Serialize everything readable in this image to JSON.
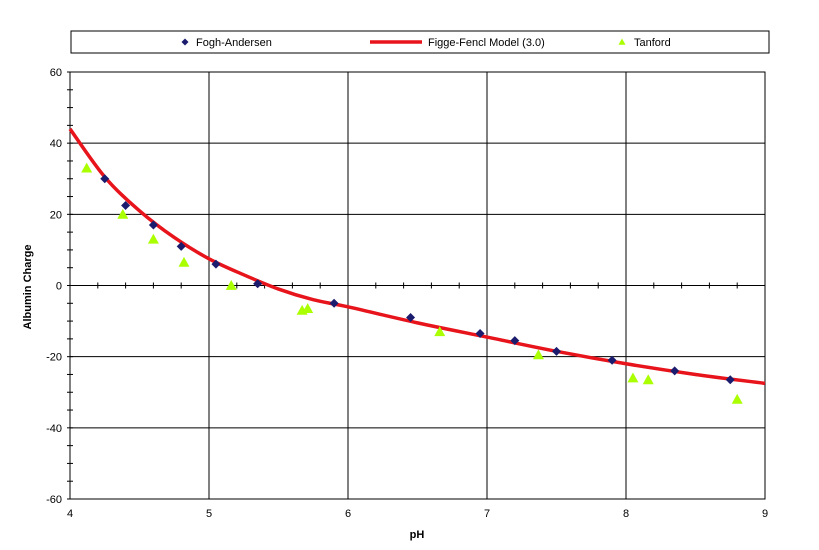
{
  "chart_data": {
    "type": "scatter",
    "title": "",
    "xlabel": "pH",
    "ylabel": "Albumin Charge",
    "xlim": [
      4,
      9
    ],
    "ylim": [
      -60,
      60
    ],
    "x_ticks": [
      4,
      5,
      6,
      7,
      8,
      9
    ],
    "y_ticks": [
      -60,
      -40,
      -20,
      0,
      20,
      40,
      60
    ],
    "grid": true,
    "legend_position": "top",
    "series": [
      {
        "name": "Fogh-Andersen",
        "type": "scatter",
        "marker": "diamond",
        "color": "#1c1c6e",
        "x": [
          4.25,
          4.4,
          4.6,
          4.8,
          5.05,
          5.35,
          5.9,
          6.45,
          6.95,
          7.2,
          7.5,
          7.9,
          8.35,
          8.75
        ],
        "y": [
          30,
          22.5,
          17,
          11,
          6,
          0.5,
          -5,
          -9,
          -13.5,
          -15.5,
          -18.5,
          -21,
          -24,
          -26.5
        ]
      },
      {
        "name": "Figge-Fencl Model (3.0)",
        "type": "line",
        "color": "#e8141c",
        "x": [
          4.0,
          4.25,
          4.5,
          4.75,
          5.0,
          5.25,
          5.5,
          5.75,
          6.0,
          6.5,
          7.0,
          7.5,
          8.0,
          8.5,
          9.0
        ],
        "y": [
          44,
          30.5,
          21,
          13.5,
          7.5,
          3,
          -1,
          -4,
          -6,
          -10.5,
          -14.5,
          -18.5,
          -22,
          -25,
          -27.5
        ]
      },
      {
        "name": "Tanford",
        "type": "scatter",
        "marker": "triangle",
        "color": "#aaff00",
        "x": [
          4.12,
          4.38,
          4.6,
          4.82,
          5.16,
          5.67,
          5.71,
          6.66,
          7.37,
          8.05,
          8.16,
          8.8
        ],
        "y": [
          33,
          20,
          13,
          6.5,
          0,
          -7,
          -6.5,
          -13,
          -19.5,
          -26,
          -26.5,
          -32
        ]
      }
    ]
  }
}
